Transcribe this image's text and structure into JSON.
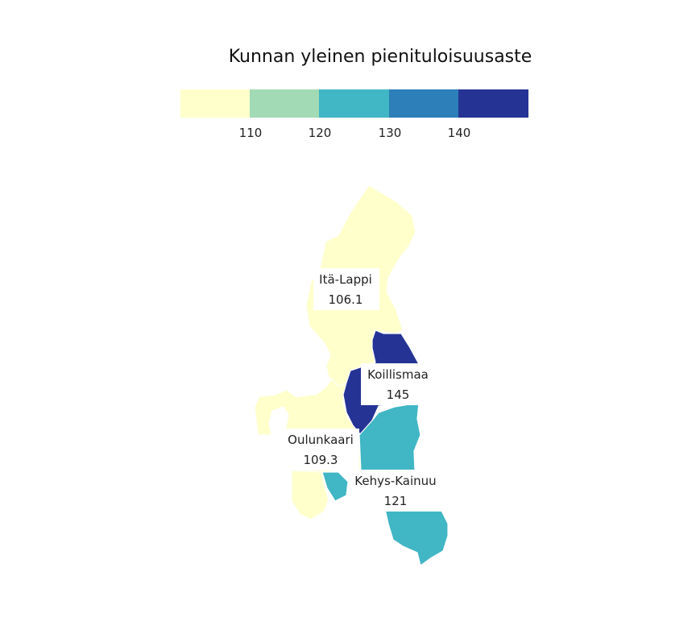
{
  "legend": {
    "title": "Kunnan yleinen pienituloisuusaste",
    "bins": [
      {
        "color": "#ffffcc"
      },
      {
        "color": "#a1dab4"
      },
      {
        "color": "#41b6c4"
      },
      {
        "color": "#2c7fb8"
      },
      {
        "color": "#253494"
      }
    ],
    "ticks": [
      "110",
      "120",
      "130",
      "140"
    ]
  },
  "regions": [
    {
      "name": "Itä-Lappi",
      "value": "106.1",
      "color": "#ffffcc"
    },
    {
      "name": "Koillismaa",
      "value": "145",
      "color": "#253494"
    },
    {
      "name": "Oulunkaari",
      "value": "109.3",
      "color": "#ffffcc"
    },
    {
      "name": "Kehys-Kainuu",
      "value": "121",
      "color": "#41b6c4"
    }
  ]
}
